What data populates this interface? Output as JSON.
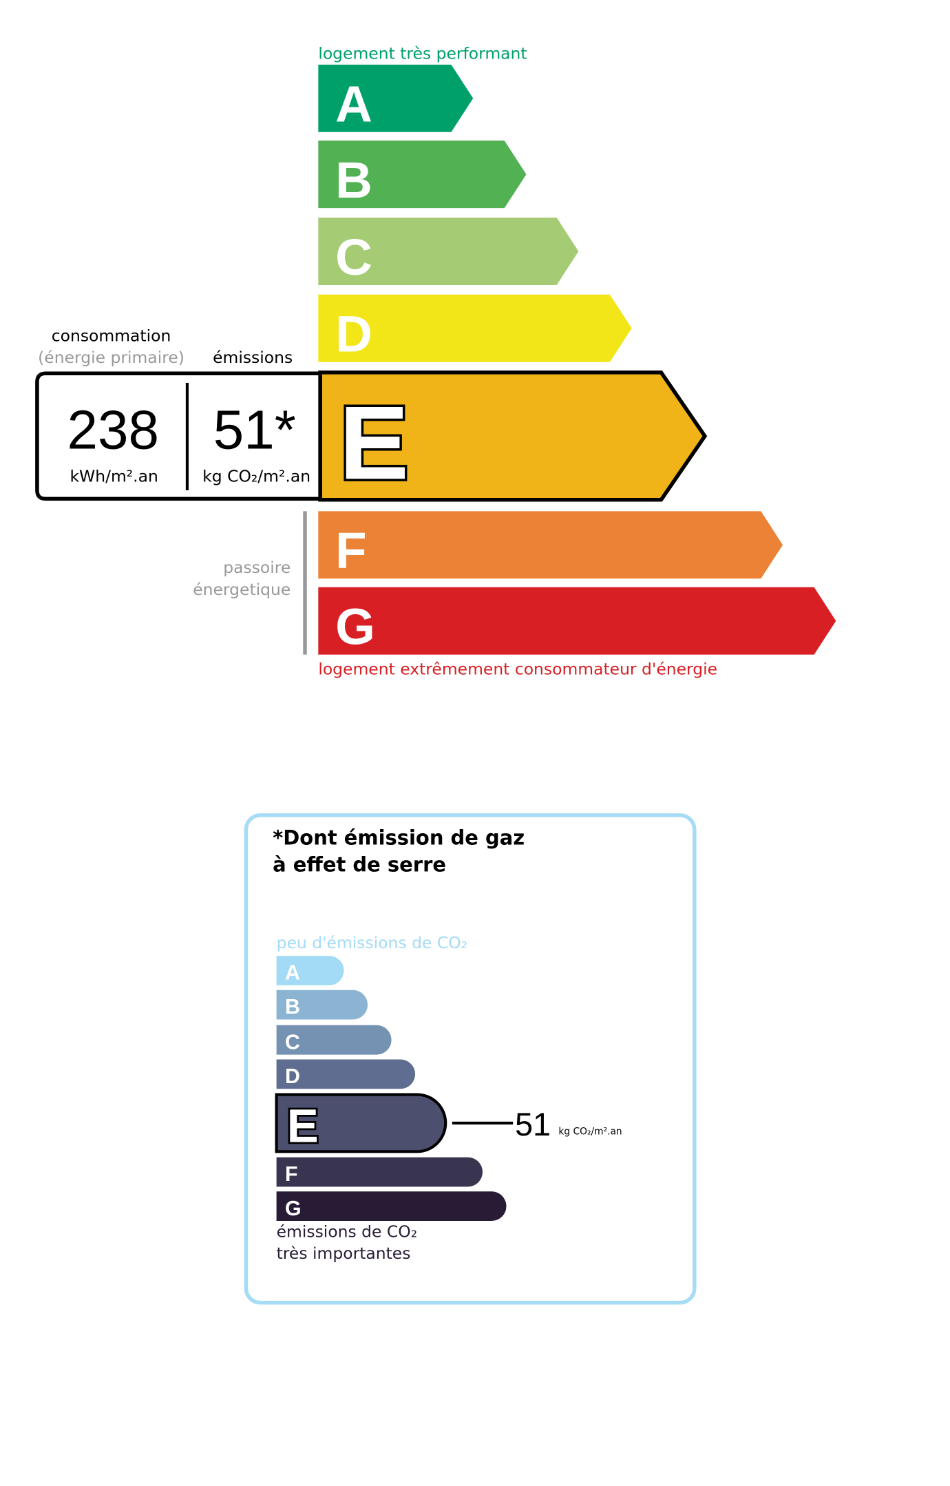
{
  "energy_label": {
    "top_caption": "logement très performant",
    "bottom_caption": "logement extrêmement consommateur d'énergie",
    "classes": [
      {
        "letter": "A",
        "color": "#00a06b"
      },
      {
        "letter": "B",
        "color": "#52b153"
      },
      {
        "letter": "C",
        "color": "#a5cc74"
      },
      {
        "letter": "D",
        "color": "#f2e619"
      },
      {
        "letter": "E",
        "color": "#f0b419"
      },
      {
        "letter": "F",
        "color": "#ec8235"
      },
      {
        "letter": "G",
        "color": "#d81f24"
      }
    ],
    "current_class": "E",
    "consumption_heading": "consommation",
    "consumption_subheading": "(énergie primaire)",
    "emissions_heading": "émissions",
    "consumption_value": "238",
    "consumption_unit": "kWh/m².an",
    "emissions_value": "51*",
    "emissions_unit": "kg CO₂/m².an",
    "passoire_line1": "passoire",
    "passoire_line2": "énergetique"
  },
  "ges_label": {
    "title_line1": "*Dont émission de gaz",
    "title_line2": "à effet de serre",
    "top_caption": "peu d'émissions de CO₂",
    "bottom_caption_line1": "émissions de CO₂",
    "bottom_caption_line2": "très importantes",
    "classes": [
      {
        "letter": "A",
        "color": "#a3dbf7"
      },
      {
        "letter": "B",
        "color": "#8bb4d3"
      },
      {
        "letter": "C",
        "color": "#7592b2"
      },
      {
        "letter": "D",
        "color": "#5e6d90"
      },
      {
        "letter": "E",
        "color": "#4d4f6e"
      },
      {
        "letter": "F",
        "color": "#393551"
      },
      {
        "letter": "G",
        "color": "#281b35"
      }
    ],
    "current_class": "E",
    "value": "51",
    "unit": "kg CO₂/m².an",
    "border_color": "#a6dcf5"
  }
}
